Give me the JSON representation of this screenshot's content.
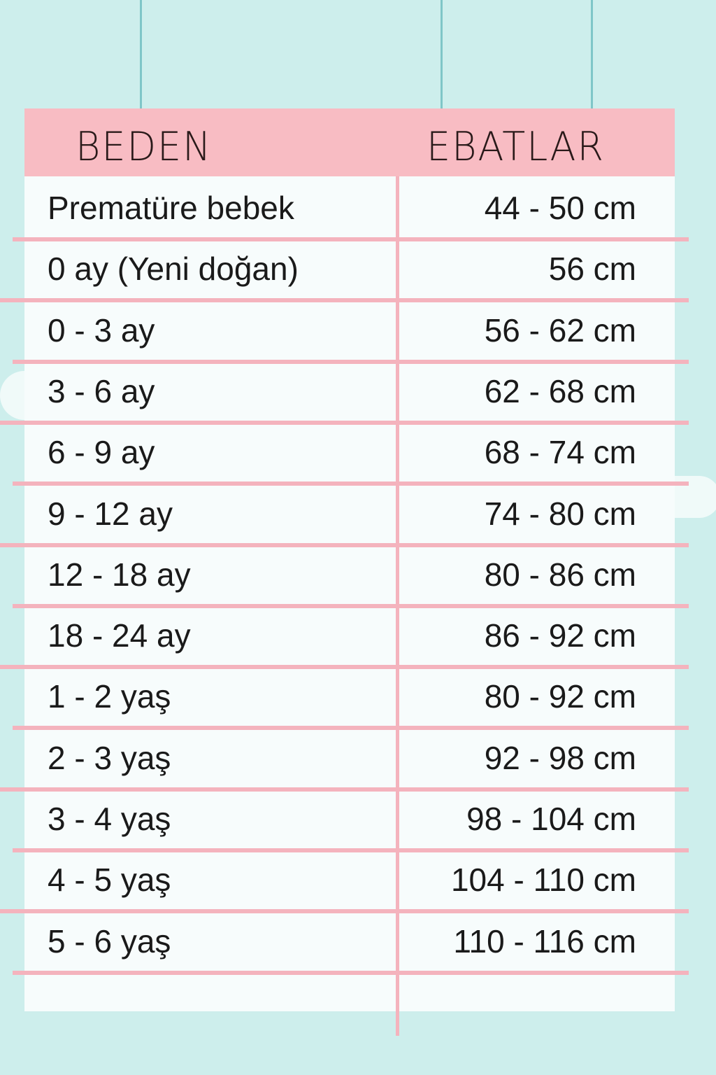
{
  "colors": {
    "background": "#cdeeec",
    "header": "#f8bcc3",
    "lines": "#f4b3bd",
    "table": "#f7fcfc"
  },
  "header": {
    "col1": "BEDEN",
    "col2": "EBATLAR"
  },
  "rows": [
    {
      "size": "Prematüre bebek",
      "measure": "44 - 50 cm"
    },
    {
      "size": "0 ay (Yeni doğan)",
      "measure": "56 cm"
    },
    {
      "size": "0 - 3 ay",
      "measure": "56 - 62 cm"
    },
    {
      "size": "3 - 6 ay",
      "measure": "62 - 68 cm"
    },
    {
      "size": "6 - 9 ay",
      "measure": "68 - 74 cm"
    },
    {
      "size": "9 - 12 ay",
      "measure": "74 - 80 cm"
    },
    {
      "size": "12 - 18 ay",
      "measure": "80 - 86 cm"
    },
    {
      "size": "18 - 24 ay",
      "measure": "86 - 92 cm"
    },
    {
      "size": "1 - 2 yaş",
      "measure": "80 - 92 cm"
    },
    {
      "size": "2 - 3 yaş",
      "measure": "92 - 98 cm"
    },
    {
      "size": "3 - 4 yaş",
      "measure": "98 - 104 cm"
    },
    {
      "size": "4 - 5 yaş",
      "measure": "104 - 110 cm"
    },
    {
      "size": "5 - 6 yaş",
      "measure": "110 - 116 cm"
    }
  ]
}
